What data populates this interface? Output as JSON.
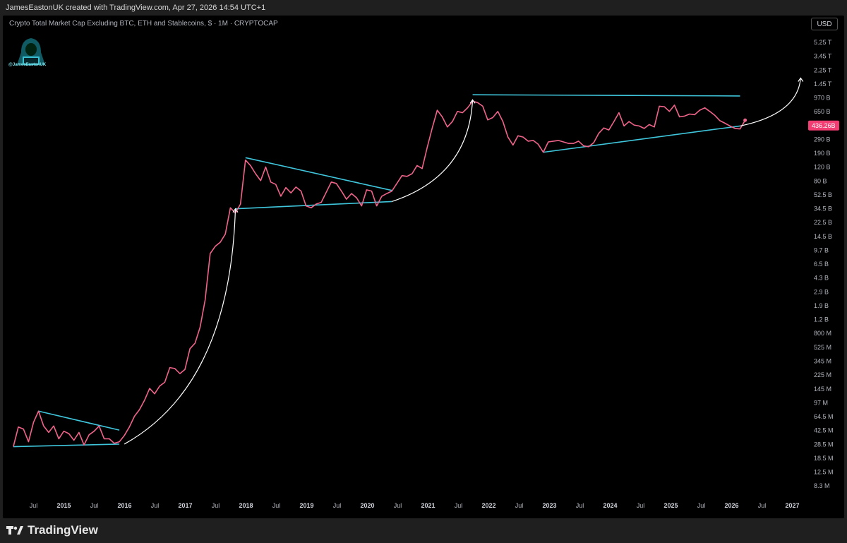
{
  "header": {
    "creator_line": "JamesEastonUK created with TradingView.com, Apr 27, 2026 14:54 UTC+1"
  },
  "chart_header": {
    "symbol_line": "Crypto Total Market Cap Excluding BTC, ETH and Stablecoins, $ · 1M · CRYPTOCAP",
    "currency_button": "USD"
  },
  "watermark": {
    "handle": "@JamesEastonUK"
  },
  "footer": {
    "brand": "TradingView"
  },
  "colors": {
    "price_line": "#f0648a",
    "trendline": "#3fc6dc",
    "arrow": "#ffffff",
    "background": "#000000",
    "price_badge": "#f23d72"
  },
  "chart_data": {
    "type": "line",
    "title": "",
    "scale": "log",
    "y_ticks": [
      "5.25 T",
      "3.45 T",
      "2.25 T",
      "1.45 T",
      "970 B",
      "650 B",
      "436.26B",
      "290 B",
      "190 B",
      "120 B",
      "80 B",
      "52.5 B",
      "34.5 B",
      "22.5 B",
      "14.5 B",
      "9.7 B",
      "6.5 B",
      "4.3 B",
      "2.9 B",
      "1.9 B",
      "1.2 B",
      "800 M",
      "525 M",
      "345 M",
      "225 M",
      "145 M",
      "97 M",
      "64.5 M",
      "42.5 M",
      "28.5 M",
      "18.5 M",
      "12.5 M",
      "8.3 M"
    ],
    "x_ticks": [
      {
        "label": "Jul",
        "year": false
      },
      {
        "label": "2015",
        "year": true
      },
      {
        "label": "Jul",
        "year": false
      },
      {
        "label": "2016",
        "year": true
      },
      {
        "label": "Jul",
        "year": false
      },
      {
        "label": "2017",
        "year": true
      },
      {
        "label": "Jul",
        "year": false
      },
      {
        "label": "2018",
        "year": true
      },
      {
        "label": "Jul",
        "year": false
      },
      {
        "label": "2019",
        "year": true
      },
      {
        "label": "Jul",
        "year": false
      },
      {
        "label": "2020",
        "year": true
      },
      {
        "label": "Jul",
        "year": false
      },
      {
        "label": "2021",
        "year": true
      },
      {
        "label": "Jul",
        "year": false
      },
      {
        "label": "2022",
        "year": true
      },
      {
        "label": "Jul",
        "year": false
      },
      {
        "label": "2023",
        "year": true
      },
      {
        "label": "Jul",
        "year": false
      },
      {
        "label": "2024",
        "year": true
      },
      {
        "label": "Jul",
        "year": false
      },
      {
        "label": "2025",
        "year": true
      },
      {
        "label": "Jul",
        "year": false
      },
      {
        "label": "2026",
        "year": true
      },
      {
        "label": "Jul",
        "year": false
      },
      {
        "label": "2027",
        "year": true
      }
    ],
    "last_value_label": "436.26B",
    "series": [
      {
        "values_usd": [
          [
            "2014-03",
            40000000.0
          ],
          [
            "2014-04",
            70000000.0
          ],
          [
            "2014-05",
            66000000.0
          ],
          [
            "2014-06",
            46000000.0
          ],
          [
            "2014-07",
            80000000.0
          ],
          [
            "2014-08",
            110000000.0
          ],
          [
            "2014-09",
            72000000.0
          ],
          [
            "2014-10",
            60000000.0
          ],
          [
            "2014-11",
            72000000.0
          ],
          [
            "2014-12",
            50000000.0
          ],
          [
            "2015-01",
            62000000.0
          ],
          [
            "2015-02",
            58000000.0
          ],
          [
            "2015-03",
            48000000.0
          ],
          [
            "2015-04",
            60000000.0
          ],
          [
            "2015-05",
            42000000.0
          ],
          [
            "2015-06",
            56000000.0
          ],
          [
            "2015-07",
            62000000.0
          ],
          [
            "2015-08",
            72000000.0
          ],
          [
            "2015-09",
            50000000.0
          ],
          [
            "2015-10",
            50000000.0
          ],
          [
            "2015-11",
            44000000.0
          ],
          [
            "2015-12",
            46000000.0
          ],
          [
            "2016-01",
            55000000.0
          ],
          [
            "2016-02",
            70000000.0
          ],
          [
            "2016-03",
            95000000.0
          ],
          [
            "2016-04",
            115000000.0
          ],
          [
            "2016-05",
            150000000.0
          ],
          [
            "2016-06",
            210000000.0
          ],
          [
            "2016-07",
            180000000.0
          ],
          [
            "2016-08",
            225000000.0
          ],
          [
            "2016-09",
            250000000.0
          ],
          [
            "2016-10",
            380000000.0
          ],
          [
            "2016-11",
            370000000.0
          ],
          [
            "2016-12",
            320000000.0
          ],
          [
            "2017-01",
            360000000.0
          ],
          [
            "2017-02",
            650000000.0
          ],
          [
            "2017-03",
            760000000.0
          ],
          [
            "2017-04",
            1200000000.0
          ],
          [
            "2017-05",
            2600000000.0
          ],
          [
            "2017-06",
            9800000000.0
          ],
          [
            "2017-07",
            12000000000.0
          ],
          [
            "2017-08",
            13500000000.0
          ],
          [
            "2017-09",
            17000000000.0
          ],
          [
            "2017-10",
            36000000000.0
          ],
          [
            "2017-11",
            31000000000.0
          ],
          [
            "2017-12",
            40000000000.0
          ],
          [
            "2018-01",
            140000000000.0
          ],
          [
            "2018-02",
            120000000000.0
          ],
          [
            "2018-03",
            95000000000.0
          ],
          [
            "2018-04",
            78000000000.0
          ],
          [
            "2018-05",
            115000000000.0
          ],
          [
            "2018-06",
            75000000000.0
          ],
          [
            "2018-07",
            70000000000.0
          ],
          [
            "2018-08",
            50000000000.0
          ],
          [
            "2018-09",
            64000000000.0
          ],
          [
            "2018-10",
            55000000000.0
          ],
          [
            "2018-11",
            65000000000.0
          ],
          [
            "2018-12",
            58000000000.0
          ],
          [
            "2019-01",
            38000000000.0
          ],
          [
            "2019-02",
            36000000000.0
          ],
          [
            "2019-03",
            40000000000.0
          ],
          [
            "2019-04",
            42000000000.0
          ],
          [
            "2019-05",
            56000000000.0
          ],
          [
            "2019-06",
            75000000000.0
          ],
          [
            "2019-07",
            72000000000.0
          ],
          [
            "2019-08",
            58000000000.0
          ],
          [
            "2019-09",
            46000000000.0
          ],
          [
            "2019-10",
            54000000000.0
          ],
          [
            "2019-11",
            48000000000.0
          ],
          [
            "2019-12",
            38000000000.0
          ],
          [
            "2020-01",
            60000000000.0
          ],
          [
            "2020-02",
            58000000000.0
          ],
          [
            "2020-03",
            38000000000.0
          ],
          [
            "2020-04",
            50000000000.0
          ],
          [
            "2020-05",
            54000000000.0
          ],
          [
            "2020-06",
            58000000000.0
          ],
          [
            "2020-07",
            72000000000.0
          ],
          [
            "2020-08",
            90000000000.0
          ],
          [
            "2020-09",
            88000000000.0
          ],
          [
            "2020-10",
            95000000000.0
          ],
          [
            "2020-11",
            120000000000.0
          ],
          [
            "2020-12",
            110000000000.0
          ],
          [
            "2021-01",
            200000000000.0
          ],
          [
            "2021-02",
            350000000000.0
          ],
          [
            "2021-03",
            580000000000.0
          ],
          [
            "2021-04",
            480000000000.0
          ],
          [
            "2021-05",
            360000000000.0
          ],
          [
            "2021-06",
            420000000000.0
          ],
          [
            "2021-07",
            560000000000.0
          ],
          [
            "2021-08",
            540000000000.0
          ],
          [
            "2021-09",
            620000000000.0
          ],
          [
            "2021-10",
            750000000000.0
          ],
          [
            "2021-11",
            720000000000.0
          ],
          [
            "2021-12",
            650000000000.0
          ],
          [
            "2022-01",
            440000000000.0
          ],
          [
            "2022-02",
            470000000000.0
          ],
          [
            "2022-03",
            560000000000.0
          ],
          [
            "2022-04",
            420000000000.0
          ],
          [
            "2022-05",
            270000000000.0
          ],
          [
            "2022-06",
            215000000000.0
          ],
          [
            "2022-07",
            280000000000.0
          ],
          [
            "2022-08",
            270000000000.0
          ],
          [
            "2022-09",
            240000000000.0
          ],
          [
            "2022-10",
            245000000000.0
          ],
          [
            "2022-11",
            220000000000.0
          ],
          [
            "2022-12",
            175000000000.0
          ],
          [
            "2023-01",
            235000000000.0
          ],
          [
            "2023-02",
            240000000000.0
          ],
          [
            "2023-03",
            245000000000.0
          ],
          [
            "2023-04",
            235000000000.0
          ],
          [
            "2023-05",
            225000000000.0
          ],
          [
            "2023-06",
            225000000000.0
          ],
          [
            "2023-07",
            240000000000.0
          ],
          [
            "2023-08",
            210000000000.0
          ],
          [
            "2023-09",
            205000000000.0
          ],
          [
            "2023-10",
            230000000000.0
          ],
          [
            "2023-11",
            300000000000.0
          ],
          [
            "2023-12",
            350000000000.0
          ],
          [
            "2024-01",
            330000000000.0
          ],
          [
            "2024-02",
            420000000000.0
          ],
          [
            "2024-03",
            540000000000.0
          ],
          [
            "2024-04",
            370000000000.0
          ],
          [
            "2024-05",
            420000000000.0
          ],
          [
            "2024-06",
            380000000000.0
          ],
          [
            "2024-07",
            370000000000.0
          ],
          [
            "2024-08",
            345000000000.0
          ],
          [
            "2024-09",
            385000000000.0
          ],
          [
            "2024-10",
            360000000000.0
          ],
          [
            "2024-11",
            650000000000.0
          ],
          [
            "2024-12",
            640000000000.0
          ],
          [
            "2025-01",
            560000000000.0
          ],
          [
            "2025-02",
            670000000000.0
          ],
          [
            "2025-03",
            480000000000.0
          ],
          [
            "2025-04",
            490000000000.0
          ],
          [
            "2025-05",
            520000000000.0
          ],
          [
            "2025-06",
            510000000000.0
          ],
          [
            "2025-07",
            580000000000.0
          ],
          [
            "2025-08",
            620000000000.0
          ],
          [
            "2025-09",
            560000000000.0
          ],
          [
            "2025-10",
            500000000000.0
          ],
          [
            "2025-11",
            430000000000.0
          ],
          [
            "2025-12",
            400000000000.0
          ],
          [
            "2026-01",
            370000000000.0
          ],
          [
            "2026-02",
            345000000000.0
          ],
          [
            "2026-03",
            340000000000.0
          ],
          [
            "2026-04",
            436260000000.0
          ]
        ]
      }
    ],
    "trendlines": [
      {
        "from": [
          "2014-03",
          40000000.0
        ],
        "to": [
          "2015-12",
          43000000.0
        ]
      },
      {
        "from": [
          "2014-08",
          110000000.0
        ],
        "to": [
          "2015-12",
          64000000.0
        ]
      },
      {
        "from": [
          "2017-11",
          35000000000.0
        ],
        "to": [
          "2020-06",
          43000000000.0
        ]
      },
      {
        "from": [
          "2018-01",
          150000000000.0
        ],
        "to": [
          "2020-06",
          59000000000.0
        ]
      },
      {
        "from": [
          "2021-10",
          900000000000.0
        ],
        "to": [
          "2026-03",
          870000000000.0
        ]
      },
      {
        "from": [
          "2022-12",
          175000000000.0
        ],
        "to": [
          "2026-03",
          370000000000.0
        ]
      }
    ],
    "projection_arrows": [
      {
        "from": [
          "2016-01",
          43000000.0
        ],
        "to": [
          "2017-11",
          35000000000.0
        ]
      },
      {
        "from": [
          "2020-06",
          43000000000.0
        ],
        "to": [
          "2021-10",
          780000000000.0
        ]
      },
      {
        "from": [
          "2026-03",
          370000000000.0
        ],
        "to": [
          "2027-03",
          1450000000000.0
        ]
      }
    ]
  }
}
